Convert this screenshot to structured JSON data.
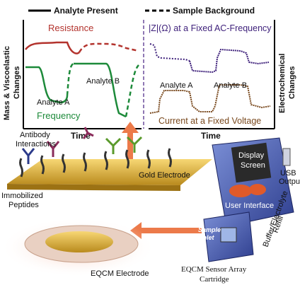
{
  "legend": {
    "solid": "Analyte Present",
    "dashed": "Sample Background"
  },
  "left_plot": {
    "series_top": "Resistance",
    "series_bottom": "Frequency",
    "analyte_a": "Analyte A",
    "analyte_b": "Analyte B",
    "x_label": "Time",
    "y_label": [
      "Mass & Viscoelastic",
      "Changes"
    ]
  },
  "right_plot": {
    "series_top": "|Z|(Ω) at a Fixed AC-Frequency",
    "series_bottom": "Current at a Fixed Voltage",
    "analyte_a": "Analyte A",
    "analyte_b": "Analyte B",
    "x_label": "Time",
    "y_label": [
      "Electrochemical",
      "Changes"
    ]
  },
  "illustration": {
    "antibody": [
      "Antibody",
      "Interactions"
    ],
    "peptides": [
      "Immobilized",
      "Peptides"
    ],
    "gold": "Gold Electrode",
    "eqcm_electrode": "EQCM Electrode"
  },
  "device": {
    "display": [
      "Display",
      "Screen"
    ],
    "usb": [
      "USB",
      "Output"
    ],
    "ui": "User Interface",
    "inlet": [
      "Sample",
      "Inlet"
    ],
    "refill": [
      "Buffer/Electrolyte",
      "Refill"
    ],
    "cartridge": [
      "EQCM Sensor Array",
      "Cartridge"
    ]
  }
}
